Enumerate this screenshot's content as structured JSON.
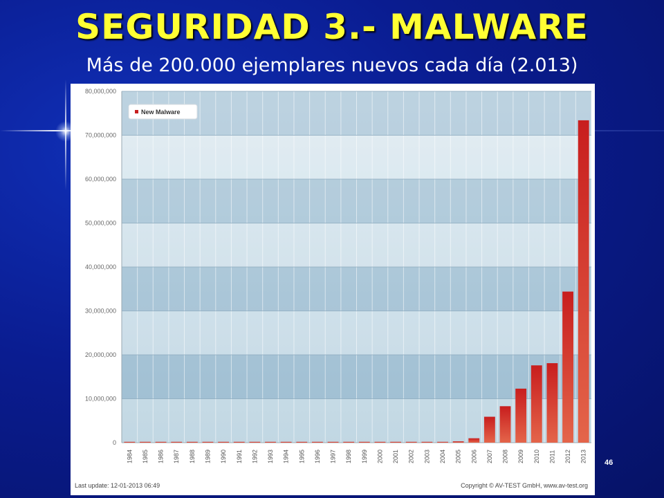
{
  "slide": {
    "title": "SEGURIDAD 3.- MALWARE",
    "subtitle": "Más de 200.000 ejemplares nuevos cada día (2.013)",
    "page_number": "46"
  },
  "chart_data": {
    "type": "bar",
    "categories": [
      "1984",
      "1985",
      "1986",
      "1987",
      "1988",
      "1989",
      "1990",
      "1991",
      "1992",
      "1993",
      "1994",
      "1995",
      "1996",
      "1997",
      "1998",
      "1999",
      "2000",
      "2001",
      "2002",
      "2003",
      "2004",
      "2005",
      "2006",
      "2007",
      "2008",
      "2009",
      "2010",
      "2011",
      "2012",
      "2013"
    ],
    "series": [
      {
        "name": "New Malware",
        "values": [
          0,
          0,
          0,
          0,
          0,
          0,
          0,
          0,
          0,
          0,
          0,
          0,
          0,
          100000,
          100000,
          100000,
          100000,
          100000,
          100000,
          100000,
          100000,
          300000,
          1000000,
          5900000,
          8300000,
          12300000,
          17600000,
          18100000,
          34400000,
          73400000
        ]
      }
    ],
    "ylim": [
      0,
      80000000
    ],
    "yticks": [
      "0",
      "10,000,000",
      "20,000,000",
      "30,000,000",
      "40,000,000",
      "50,000,000",
      "60,000,000",
      "70,000,000",
      "80,000,000"
    ],
    "legend_position": "top-left",
    "footer_left": "Last update: 12-01-2013 06:49",
    "footer_right": "Copyright © AV-TEST GmbH, www.av-test.org",
    "colors": {
      "bar_top": "#c81e1e",
      "bar_bottom": "#e4654a",
      "legend_swatch": "#c81e1e"
    }
  }
}
